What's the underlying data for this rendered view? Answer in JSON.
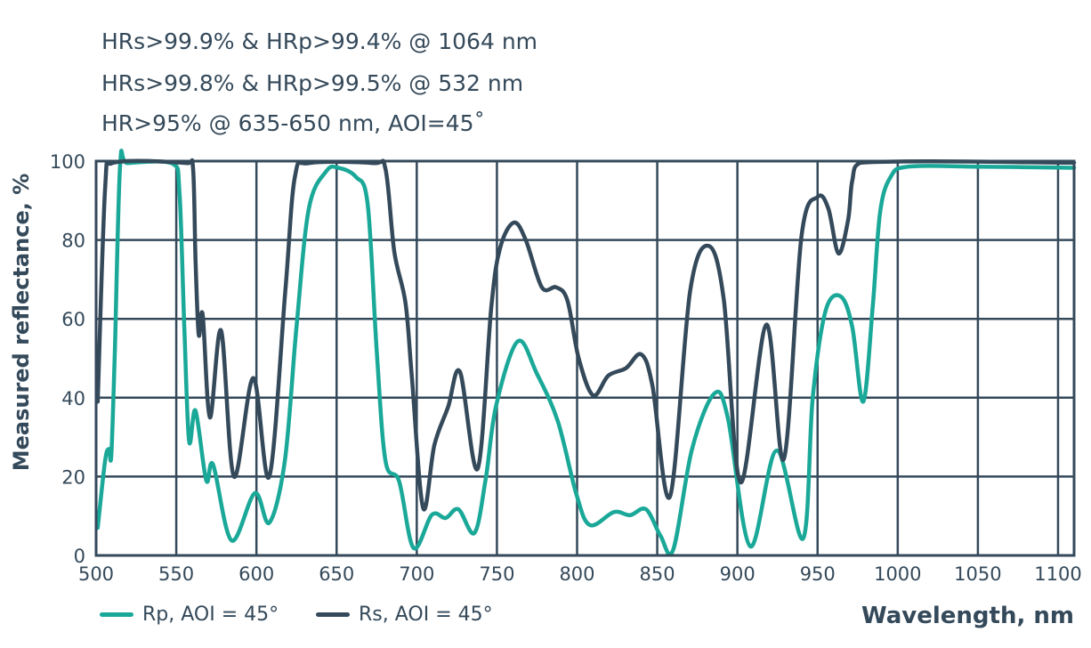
{
  "annotations": [
    "HRs>99.9% & HRp>99.4% @ 1064 nm",
    "HRs>99.8% & HRp>99.5% @ 532 nm",
    "HR>95% @ 635-650 nm, AOI=45˚"
  ],
  "chart_data": {
    "type": "line",
    "title": "",
    "xlabel": "Wavelength, nm",
    "ylabel": "Measured reflectance, %",
    "xlim": [
      500,
      1110
    ],
    "ylim": [
      0,
      100
    ],
    "xticks": [
      500,
      550,
      600,
      650,
      700,
      750,
      800,
      850,
      900,
      950,
      1000,
      1050,
      1100
    ],
    "yticks": [
      0,
      20,
      40,
      60,
      80,
      100
    ],
    "grid": true,
    "legend_position": "bottom-left",
    "series": [
      {
        "name": "Rp, AOI = 45°",
        "color": "#1aa898",
        "x": [
          501,
          505.6,
          508,
          509.5,
          511.7,
          515,
          519.5,
          548,
          552,
          555,
          558,
          562,
          568.7,
          573,
          584.5,
          599,
          608,
          617.7,
          625,
          632.7,
          643.7,
          651,
          662,
          669.4,
          675,
          680.5,
          689,
          698,
          709.4,
          718,
          726,
          736,
          743,
          749.5,
          763,
          775,
          788,
          799.5,
          808,
          823,
          833,
          843,
          852,
          860,
          871.7,
          885.5,
          894,
          908,
          924.4,
          941,
          947,
          955,
          964.4,
          971.6,
          978.5,
          984.5,
          989,
          995.6,
          1006.7,
          1050,
          1110
        ],
        "y": [
          7,
          24,
          27,
          25.5,
          52,
          99,
          99.5,
          99.3,
          92,
          58,
          29,
          36.7,
          19,
          23,
          3.8,
          15.8,
          8.3,
          24,
          58,
          88,
          97.5,
          98.3,
          96,
          89,
          52,
          24,
          18.8,
          1.9,
          10.3,
          9.5,
          11.7,
          5.7,
          19.4,
          38,
          54.3,
          46,
          34,
          15.6,
          7.7,
          11,
          10.2,
          11.7,
          5,
          1.5,
          27,
          41,
          35,
          2.3,
          26.6,
          4.3,
          40,
          62,
          65.7,
          58,
          39,
          63.6,
          87,
          96,
          98.6,
          98.6,
          98.3
        ]
      },
      {
        "name": "Rs, AOI = 45°",
        "color": "#34495a",
        "x": [
          501,
          505.6,
          510,
          557,
          560.5,
          562,
          564,
          566.5,
          571,
          578,
          586,
          598,
          608,
          618,
          624,
          633,
          673,
          680.5,
          686,
          693,
          697,
          704,
          711,
          719.5,
          727,
          738,
          746.5,
          752,
          760.5,
          768,
          778,
          787,
          794,
          801,
          810,
          819.5,
          830.5,
          840,
          847,
          858,
          870.5,
          882,
          891.5,
          902,
          918,
          929,
          940,
          950,
          956.7,
          963,
          969,
          971.6,
          977,
          1110
        ],
        "y": [
          39,
          93,
          99.5,
          99.5,
          98,
          75,
          56,
          61,
          35,
          57,
          20,
          45,
          20,
          67,
          96,
          99.5,
          99.5,
          98,
          77,
          64,
          45,
          12,
          28,
          37.6,
          46.5,
          22,
          63,
          78,
          84.4,
          80,
          68,
          68,
          64.6,
          50,
          40.6,
          45.6,
          47.5,
          51,
          43,
          15,
          67,
          78.5,
          65,
          18.5,
          58.5,
          24.5,
          81,
          90.9,
          88,
          76.6,
          85,
          95,
          99.6,
          99.6
        ]
      }
    ]
  }
}
